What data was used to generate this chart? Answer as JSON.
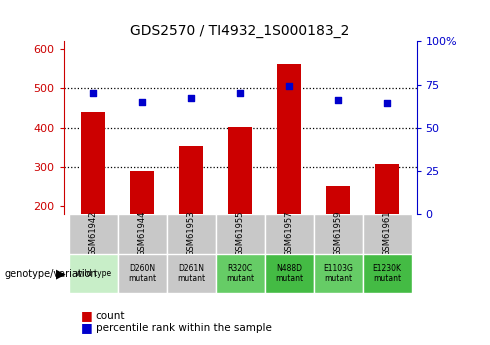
{
  "title": "GDS2570 / TI4932_1S000183_2",
  "samples": [
    "GSM61942",
    "GSM61944",
    "GSM61953",
    "GSM61955",
    "GSM61957",
    "GSM61959",
    "GSM61961"
  ],
  "genotypes": [
    "wild type",
    "D260N\nmutant",
    "D261N\nmutant",
    "R320C\nmutant",
    "N488D\nmutant",
    "E1103G\nmutant",
    "E1230K\nmutant"
  ],
  "counts": [
    440,
    290,
    352,
    402,
    562,
    252,
    307
  ],
  "percentile_ranks": [
    70,
    65,
    67,
    70,
    74,
    66,
    64
  ],
  "ylim_left": [
    180,
    620
  ],
  "ylim_right": [
    0,
    100
  ],
  "bar_color": "#cc0000",
  "dot_color": "#0000cc",
  "title_color": "#000000",
  "left_tick_color": "#cc0000",
  "right_tick_color": "#0000cc",
  "bar_bottom": 180,
  "genotype_label": "genotype/variation",
  "legend_count": "count",
  "legend_pct": "percentile rank within the sample",
  "gsm_cell_color": "#c8c8c8",
  "wildtype_color": "#c8eec8",
  "mutant_color": "#66cc66",
  "geno_bg": [
    "#c8eec8",
    "#c8c8c8",
    "#c8c8c8",
    "#66cc66",
    "#44bb44",
    "#66cc66",
    "#44bb44"
  ]
}
